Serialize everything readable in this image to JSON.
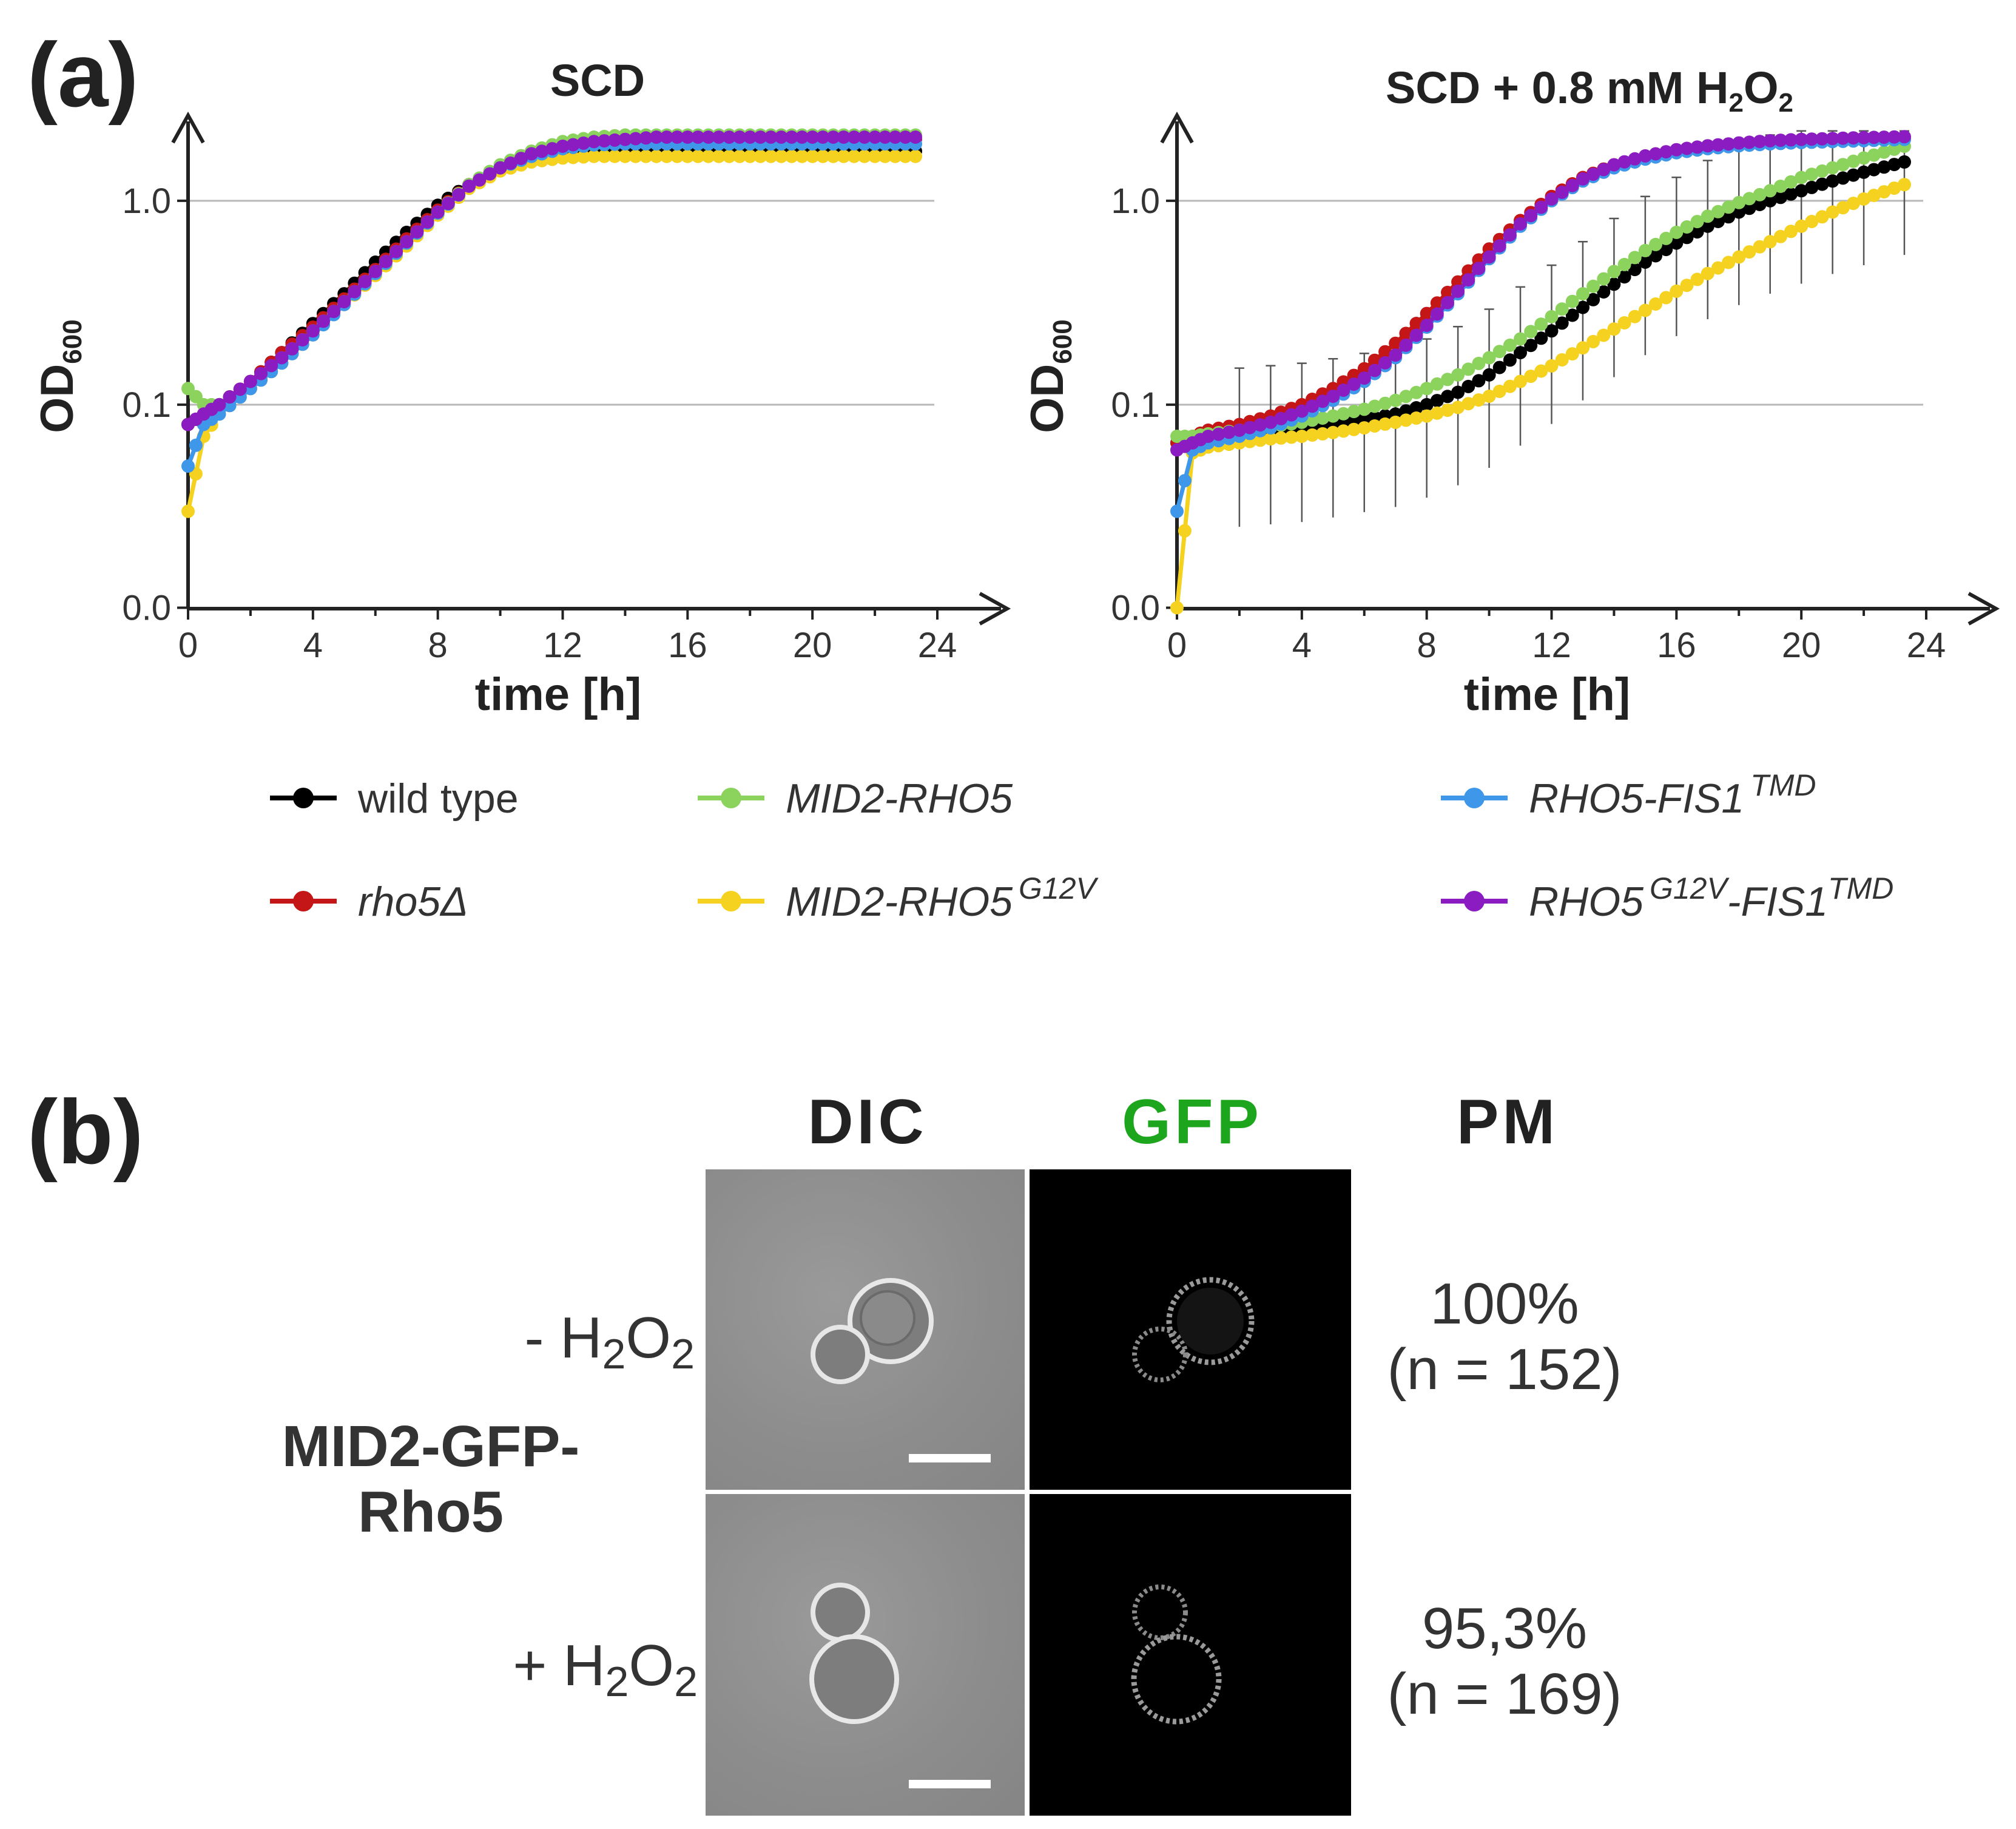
{
  "panel_a": {
    "label": "(a)",
    "legend": [
      {
        "name": "wild type",
        "color": "#000000",
        "italic": false
      },
      {
        "name": "MID2-RHO5",
        "color": "#8cd35e",
        "italic": true
      },
      {
        "name": "RHO5-FIS1",
        "sup": "TMD",
        "color": "#3f97ea",
        "italic": true
      },
      {
        "name": "rho5Δ",
        "color": "#c41616",
        "italic": true
      },
      {
        "name": "MID2-RHO5",
        "sup": "G12V",
        "color": "#f5d21f",
        "italic": true
      },
      {
        "name": "RHO5",
        "sup": "G12V",
        "name2": "-FIS1",
        "sup2": "TMD",
        "color": "#8a1cc2",
        "italic": true
      }
    ]
  },
  "chart_data": [
    {
      "type": "line",
      "title": "SCD",
      "xlabel": "time [h]",
      "ylabel": "OD600",
      "ylabel_main": "OD",
      "ylabel_sub": "600",
      "xlim": [
        0,
        24
      ],
      "xticks": [
        0,
        4,
        8,
        12,
        16,
        20,
        24
      ],
      "yscale": "log",
      "ylim_log": [
        -2,
        0.3
      ],
      "ytick_labels": [
        "0.0",
        "0.1",
        "1.0"
      ],
      "ytick_values": [
        0.01,
        0.1,
        1.0
      ],
      "x": [
        0,
        0.5,
        1,
        2,
        3,
        4,
        5,
        6,
        7,
        8,
        9,
        10,
        11,
        12,
        13,
        14,
        15,
        16,
        18,
        20,
        22,
        23.3
      ],
      "series": [
        {
          "name": "wild type",
          "values": [
            0.08,
            0.09,
            0.1,
            0.13,
            0.18,
            0.25,
            0.35,
            0.5,
            0.7,
            0.95,
            1.2,
            1.45,
            1.6,
            1.7,
            1.75,
            1.75,
            1.75,
            1.75,
            1.75,
            1.75,
            1.75,
            1.75
          ]
        },
        {
          "name": "rho5Δ",
          "values": [
            0.08,
            0.09,
            0.1,
            0.13,
            0.18,
            0.24,
            0.33,
            0.46,
            0.65,
            0.9,
            1.2,
            1.45,
            1.65,
            1.8,
            1.9,
            1.95,
            2.0,
            2.0,
            2.0,
            2.0,
            2.0,
            2.0
          ]
        },
        {
          "name": "MID2-RHO5",
          "values": [
            0.12,
            0.1,
            0.1,
            0.12,
            0.17,
            0.23,
            0.32,
            0.45,
            0.63,
            0.88,
            1.2,
            1.5,
            1.75,
            1.95,
            2.05,
            2.1,
            2.1,
            2.1,
            2.1,
            2.1,
            2.1,
            2.1
          ]
        },
        {
          "name": "MID2-RHO5 G12V",
          "values": [
            0.03,
            0.07,
            0.09,
            0.12,
            0.16,
            0.22,
            0.31,
            0.43,
            0.6,
            0.85,
            1.15,
            1.4,
            1.55,
            1.62,
            1.65,
            1.65,
            1.65,
            1.65,
            1.65,
            1.65,
            1.65,
            1.65
          ]
        },
        {
          "name": "RHO5-FIS1 TMD",
          "values": [
            0.05,
            0.08,
            0.09,
            0.12,
            0.16,
            0.22,
            0.31,
            0.44,
            0.62,
            0.87,
            1.18,
            1.45,
            1.65,
            1.8,
            1.88,
            1.9,
            1.9,
            1.9,
            1.9,
            1.9,
            1.9,
            1.9
          ]
        },
        {
          "name": "RHO5 G12V-FIS1 TMD",
          "values": [
            0.08,
            0.09,
            0.1,
            0.13,
            0.17,
            0.23,
            0.32,
            0.45,
            0.63,
            0.88,
            1.18,
            1.45,
            1.7,
            1.85,
            1.95,
            2.0,
            2.05,
            2.05,
            2.05,
            2.05,
            2.05,
            2.05
          ]
        }
      ]
    },
    {
      "type": "line",
      "title": "SCD + 0.8 mM H2O2",
      "title_parts": [
        "SCD + 0.8 mM H",
        "2",
        "O",
        "2"
      ],
      "xlabel": "time [h]",
      "ylabel": "OD600",
      "ylabel_main": "OD",
      "ylabel_sub": "600",
      "xlim": [
        0,
        24
      ],
      "xticks": [
        0,
        4,
        8,
        12,
        16,
        20,
        24
      ],
      "yscale": "log",
      "ylim_log": [
        -2,
        0.3
      ],
      "ytick_labels": [
        "0.0",
        "0.1",
        "1.0"
      ],
      "ytick_values": [
        0.01,
        0.1,
        1.0
      ],
      "x": [
        0,
        0.5,
        1,
        2,
        3,
        4,
        5,
        6,
        7,
        8,
        9,
        10,
        11,
        12,
        13,
        14,
        15,
        16,
        17,
        18,
        19,
        20,
        21,
        22,
        23.3
      ],
      "series": [
        {
          "name": "wild type",
          "values": [
            0.065,
            0.068,
            0.07,
            0.072,
            0.074,
            0.076,
            0.08,
            0.085,
            0.09,
            0.1,
            0.115,
            0.14,
            0.18,
            0.23,
            0.3,
            0.39,
            0.5,
            0.62,
            0.75,
            0.88,
            1.0,
            1.12,
            1.25,
            1.38,
            1.55
          ]
        },
        {
          "name": "rho5Δ",
          "values": [
            0.065,
            0.07,
            0.075,
            0.08,
            0.088,
            0.1,
            0.12,
            0.15,
            0.2,
            0.28,
            0.4,
            0.58,
            0.8,
            1.05,
            1.3,
            1.5,
            1.65,
            1.75,
            1.82,
            1.88,
            1.92,
            1.95,
            1.97,
            1.99,
            2.0
          ]
        },
        {
          "name": "MID2-RHO5",
          "values": [
            0.07,
            0.07,
            0.072,
            0.075,
            0.078,
            0.082,
            0.088,
            0.095,
            0.105,
            0.12,
            0.14,
            0.17,
            0.21,
            0.27,
            0.35,
            0.45,
            0.57,
            0.7,
            0.84,
            0.98,
            1.12,
            1.3,
            1.45,
            1.62,
            1.85
          ]
        },
        {
          "name": "MID2-RHO5 G12V",
          "values": [
            0.01,
            0.058,
            0.062,
            0.065,
            0.068,
            0.07,
            0.073,
            0.077,
            0.082,
            0.088,
            0.097,
            0.11,
            0.13,
            0.155,
            0.19,
            0.235,
            0.29,
            0.36,
            0.44,
            0.53,
            0.63,
            0.75,
            0.88,
            1.02,
            1.2
          ]
        },
        {
          "name": "RHO5-FIS1 TMD",
          "values": [
            0.03,
            0.06,
            0.065,
            0.07,
            0.077,
            0.088,
            0.105,
            0.13,
            0.17,
            0.24,
            0.35,
            0.52,
            0.75,
            1.0,
            1.25,
            1.45,
            1.6,
            1.72,
            1.8,
            1.86,
            1.9,
            1.93,
            1.95,
            1.97,
            2.0
          ]
        },
        {
          "name": "RHO5 G12V-FIS1 TMD",
          "values": [
            0.06,
            0.065,
            0.07,
            0.075,
            0.082,
            0.093,
            0.11,
            0.135,
            0.175,
            0.245,
            0.36,
            0.53,
            0.77,
            1.02,
            1.28,
            1.5,
            1.66,
            1.78,
            1.86,
            1.92,
            1.97,
            2.0,
            2.02,
            2.04,
            2.06
          ]
        }
      ]
    }
  ],
  "panel_b": {
    "label": "(b)",
    "headers": {
      "dic": "DIC",
      "gfp": "GFP",
      "pm": "PM"
    },
    "strain_line1": "MID2-GFP-",
    "strain_line2": "Rho5",
    "rows": [
      {
        "label_prefix": "- H",
        "sub1": "2",
        "mid": "O",
        "sub2": "2",
        "percent": "100%",
        "n": "(n = 152)"
      },
      {
        "label_prefix": "+ H",
        "sub1": "2",
        "mid": "O",
        "sub2": "2",
        "percent": "95,3%",
        "n": "(n = 169)"
      }
    ],
    "gfp_header_color": "#1ea51e"
  }
}
